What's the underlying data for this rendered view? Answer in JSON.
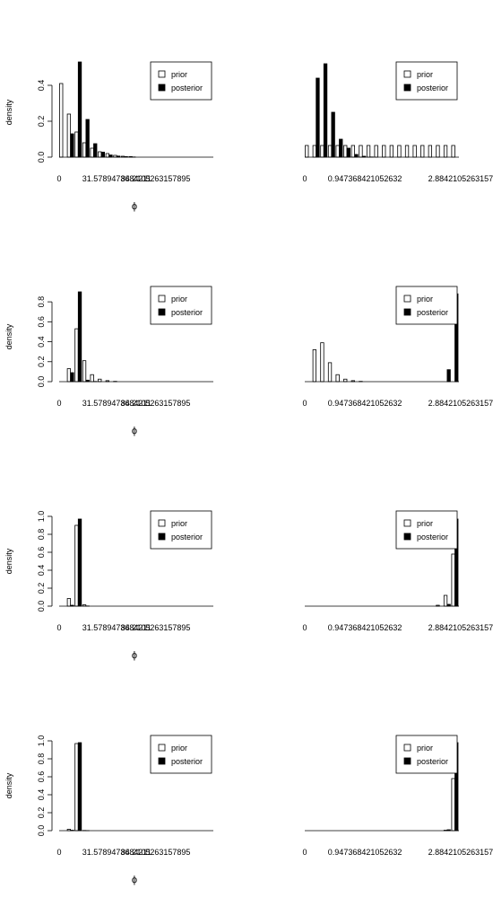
{
  "legend_labels": [
    "prior",
    "posterior"
  ],
  "chart_data": [
    {
      "type": "bar",
      "panel": "row1-left",
      "ylabel": "density",
      "xlabel": "ϕ",
      "ylim": [
        0,
        0.5
      ],
      "yticks": [
        "0.0",
        "0.2",
        "0.4"
      ],
      "ytick_values": [
        0,
        0.2,
        0.4
      ],
      "xtick_labels": [
        "0",
        "31.5789473684211",
        "84.2105263157895"
      ],
      "xtick_index": [
        0,
        3,
        8
      ],
      "legend": "top-right",
      "series": [
        {
          "name": "prior",
          "values": [
            0.41,
            0.24,
            0.14,
            0.08,
            0.05,
            0.03,
            0.02,
            0.01,
            0.005,
            0.003,
            0,
            0,
            0,
            0,
            0,
            0,
            0,
            0,
            0,
            0
          ]
        },
        {
          "name": "posterior",
          "values": [
            0,
            0.13,
            0.53,
            0.21,
            0.075,
            0.028,
            0.012,
            0.006,
            0.003,
            0.001,
            0,
            0,
            0,
            0,
            0,
            0,
            0,
            0,
            0,
            0
          ]
        }
      ]
    },
    {
      "type": "bar",
      "panel": "row1-right",
      "ylabel": "",
      "xlabel": "",
      "ylim": [
        0,
        0.5
      ],
      "yticks": [],
      "ytick_values": [],
      "xtick_labels": [
        "0",
        "0.947368421052632",
        "2.88421052631579"
      ],
      "xtick_index": [
        0,
        3,
        16
      ],
      "legend": "top-right",
      "series": [
        {
          "name": "prior",
          "values": [
            0.065,
            0.065,
            0.065,
            0.065,
            0.065,
            0.065,
            0.065,
            0.065,
            0.065,
            0.065,
            0.065,
            0.065,
            0.065,
            0.065,
            0.065,
            0.065,
            0.065,
            0.065,
            0.065,
            0.065
          ]
        },
        {
          "name": "posterior",
          "values": [
            0,
            0.44,
            0.52,
            0.25,
            0.1,
            0.05,
            0.015,
            0.005,
            0.001,
            0,
            0,
            0,
            0,
            0,
            0,
            0,
            0,
            0,
            0,
            0
          ]
        }
      ]
    },
    {
      "type": "bar",
      "panel": "row2-left",
      "ylabel": "density",
      "xlabel": "ϕ",
      "ylim": [
        0,
        0.9
      ],
      "yticks": [
        "0.0",
        "0.2",
        "0.4",
        "0.6",
        "0.8"
      ],
      "ytick_values": [
        0,
        0.2,
        0.4,
        0.6,
        0.8
      ],
      "xtick_labels": [
        "0",
        "31.5789473684211",
        "84.2105263157895"
      ],
      "xtick_index": [
        0,
        3,
        8
      ],
      "legend": "top-right",
      "series": [
        {
          "name": "prior",
          "values": [
            0,
            0.13,
            0.53,
            0.21,
            0.07,
            0.025,
            0.01,
            0.003,
            0,
            0,
            0,
            0,
            0,
            0,
            0,
            0,
            0,
            0,
            0,
            0
          ]
        },
        {
          "name": "posterior",
          "values": [
            0,
            0.09,
            0.9,
            0.015,
            0.002,
            0,
            0,
            0,
            0,
            0,
            0,
            0,
            0,
            0,
            0,
            0,
            0,
            0,
            0,
            0
          ]
        }
      ]
    },
    {
      "type": "bar",
      "panel": "row2-right",
      "ylabel": "",
      "xlabel": "",
      "ylim": [
        0,
        0.9
      ],
      "yticks": [],
      "ytick_values": [],
      "xtick_labels": [
        "0",
        "0.947368421052632",
        "2.88421052631579"
      ],
      "xtick_index": [
        0,
        3,
        16
      ],
      "legend": "top-right",
      "series": [
        {
          "name": "prior",
          "values": [
            0,
            0.32,
            0.39,
            0.19,
            0.07,
            0.025,
            0.01,
            0.003,
            0,
            0,
            0,
            0,
            0,
            0,
            0,
            0,
            0,
            0,
            0,
            0
          ]
        },
        {
          "name": "posterior",
          "values": [
            0,
            0,
            0,
            0,
            0,
            0,
            0,
            0,
            0,
            0,
            0,
            0,
            0,
            0,
            0,
            0,
            0,
            0,
            0.12,
            0.88
          ]
        }
      ]
    },
    {
      "type": "bar",
      "panel": "row3-left",
      "ylabel": "density",
      "xlabel": "ϕ",
      "ylim": [
        0,
        1.0
      ],
      "yticks": [
        "0.0",
        "0.2",
        "0.4",
        "0.6",
        "0.8",
        "1.0"
      ],
      "ytick_values": [
        0,
        0.2,
        0.4,
        0.6,
        0.8,
        1.0
      ],
      "xtick_labels": [
        "0",
        "31.5789473684211",
        "84.2105263157895"
      ],
      "xtick_index": [
        0,
        3,
        8
      ],
      "legend": "top-right",
      "series": [
        {
          "name": "prior",
          "values": [
            0,
            0.085,
            0.9,
            0.015,
            0,
            0,
            0,
            0,
            0,
            0,
            0,
            0,
            0,
            0,
            0,
            0,
            0,
            0,
            0,
            0
          ]
        },
        {
          "name": "posterior",
          "values": [
            0,
            0.01,
            0.97,
            0.002,
            0,
            0,
            0,
            0,
            0,
            0,
            0,
            0,
            0,
            0,
            0,
            0,
            0,
            0,
            0,
            0
          ]
        }
      ]
    },
    {
      "type": "bar",
      "panel": "row3-right",
      "ylabel": "",
      "xlabel": "",
      "ylim": [
        0,
        1.0
      ],
      "yticks": [],
      "ytick_values": [],
      "xtick_labels": [
        "0",
        "0.947368421052632",
        "2.88421052631579"
      ],
      "xtick_index": [
        0,
        3,
        16
      ],
      "legend": "top-right",
      "series": [
        {
          "name": "prior",
          "values": [
            0,
            0,
            0,
            0,
            0,
            0,
            0,
            0,
            0,
            0,
            0,
            0,
            0,
            0,
            0,
            0,
            0,
            0.01,
            0.12,
            0.58
          ]
        },
        {
          "name": "posterior",
          "values": [
            0,
            0,
            0,
            0,
            0,
            0,
            0,
            0,
            0,
            0,
            0,
            0,
            0,
            0,
            0,
            0,
            0,
            0,
            0.02,
            0.97
          ]
        }
      ]
    },
    {
      "type": "bar",
      "panel": "row4-left",
      "ylabel": "density",
      "xlabel": "ϕ",
      "ylim": [
        0,
        1.0
      ],
      "yticks": [
        "0.0",
        "0.2",
        "0.4",
        "0.6",
        "0.8",
        "1.0"
      ],
      "ytick_values": [
        0,
        0.2,
        0.4,
        0.6,
        0.8,
        1.0
      ],
      "xtick_labels": [
        "0",
        "31.5789473684211",
        "84.2105263157895"
      ],
      "xtick_index": [
        0,
        3,
        8
      ],
      "legend": "top-right",
      "series": [
        {
          "name": "prior",
          "values": [
            0,
            0.015,
            0.97,
            0.002,
            0,
            0,
            0,
            0,
            0,
            0,
            0,
            0,
            0,
            0,
            0,
            0,
            0,
            0,
            0,
            0
          ]
        },
        {
          "name": "posterior",
          "values": [
            0,
            0.005,
            0.98,
            0.001,
            0,
            0,
            0,
            0,
            0,
            0,
            0,
            0,
            0,
            0,
            0,
            0,
            0,
            0,
            0,
            0
          ]
        }
      ]
    },
    {
      "type": "bar",
      "panel": "row4-right",
      "ylabel": "",
      "xlabel": "",
      "ylim": [
        0,
        1.0
      ],
      "yticks": [],
      "ytick_values": [],
      "xtick_labels": [
        "0",
        "0.947368421052632",
        "2.88421052631579"
      ],
      "xtick_index": [
        0,
        3,
        16
      ],
      "legend": "top-right",
      "series": [
        {
          "name": "prior",
          "values": [
            0,
            0,
            0,
            0,
            0,
            0,
            0,
            0,
            0,
            0,
            0,
            0,
            0,
            0,
            0,
            0,
            0,
            0,
            0.005,
            0.58
          ]
        },
        {
          "name": "posterior",
          "values": [
            0,
            0,
            0,
            0,
            0,
            0,
            0,
            0,
            0,
            0,
            0,
            0,
            0,
            0,
            0,
            0,
            0,
            0,
            0.01,
            0.98
          ]
        }
      ]
    }
  ]
}
